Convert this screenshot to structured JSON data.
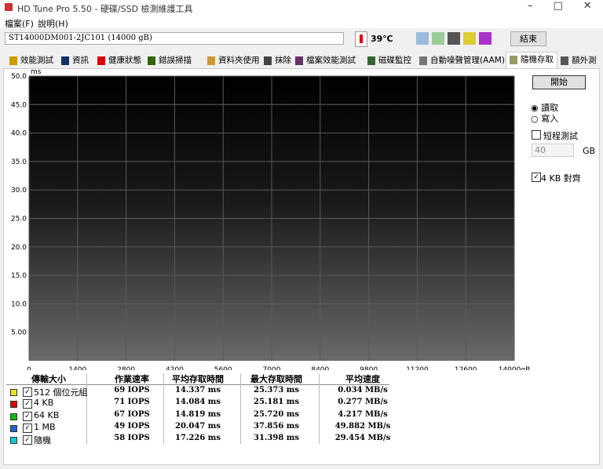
{
  "window": {
    "title": "HD Tune Pro 5.50 - 硬碟/SSD 檢測維護工具",
    "menu": [
      "檔案(F)",
      "說明(H)"
    ]
  },
  "toolbar": {
    "drive": "ST14000DM001-2JC101 (14000 gB)",
    "temperature": "39℃",
    "exit": "結束"
  },
  "tabs": [
    "效能測試",
    "資訊",
    "健康狀態",
    "錯誤掃描",
    "資料夾使用",
    "抹除",
    "檔案效能測試",
    "磁碟監控",
    "自動噪聲管理(AAM)",
    "隨機存取",
    "額外測試"
  ],
  "active_tab": 9,
  "chart_data": {
    "type": "scatter",
    "y_unit": "ms",
    "ylim": [
      0,
      50
    ],
    "yticks": [
      {
        "value": 5,
        "label": "5.00"
      },
      {
        "value": 10,
        "label": "10.0"
      },
      {
        "value": 15,
        "label": "15.0"
      },
      {
        "value": 20,
        "label": "20.0"
      },
      {
        "value": 25,
        "label": "25.0"
      },
      {
        "value": 30,
        "label": "30.0"
      },
      {
        "value": 35,
        "label": "35.0"
      },
      {
        "value": 40,
        "label": "40.0"
      },
      {
        "value": 45,
        "label": "45.0"
      },
      {
        "value": 50,
        "label": "50.0"
      }
    ],
    "xlim": [
      0,
      14000
    ],
    "xticks": [
      0,
      1400,
      2800,
      4200,
      5600,
      7000,
      8400,
      9800,
      11200,
      12600,
      {
        "value": 14000,
        "label": "14000gB"
      }
    ],
    "grid": true
  },
  "side": {
    "start": "開始",
    "read": "讀取",
    "write": "寫入",
    "short_test": "短程測試",
    "short_size": "40",
    "short_unit": "GB",
    "align": "4 KB 對齊"
  },
  "table": {
    "headers": [
      "傳輸大小",
      "作業速率",
      "平均存取時間",
      "最大存取時間",
      "平均速度"
    ],
    "rows": [
      {
        "color": "#e8e800",
        "cells": [
          "512 個位元組",
          "69 IOPS",
          "14.337 ms",
          "25.373 ms",
          "0.034 MB/s"
        ]
      },
      {
        "color": "#e00000",
        "cells": [
          "4 KB",
          "71 IOPS",
          "14.084 ms",
          "25.181 ms",
          "0.277 MB/s"
        ]
      },
      {
        "color": "#00c000",
        "cells": [
          "64 KB",
          "67 IOPS",
          "14.819 ms",
          "25.720 ms",
          "4.217 MB/s"
        ]
      },
      {
        "color": "#2060e0",
        "cells": [
          "1 MB",
          "49 IOPS",
          "20.047 ms",
          "37.856 ms",
          "49.882 MB/s"
        ]
      },
      {
        "color": "#00d0d0",
        "cells": [
          "隨機",
          "58 IOPS",
          "17.226 ms",
          "31.398 ms",
          "29.454 MB/s"
        ]
      }
    ]
  }
}
